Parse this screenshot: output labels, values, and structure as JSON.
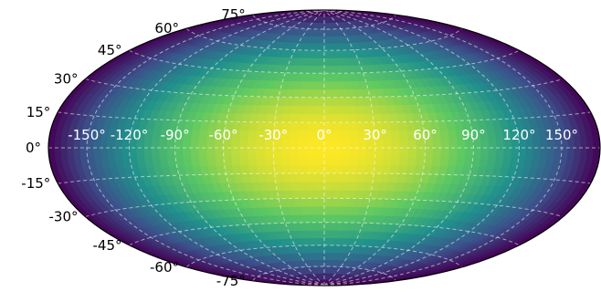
{
  "chart_data": {
    "type": "heatmap",
    "projection": "hammer",
    "title": "",
    "xlabel": "",
    "ylabel": "",
    "field": "cos(latitude) * cos(longitude / 2)",
    "value_range": [
      0,
      1
    ],
    "colormap": "viridis",
    "colormap_stops": [
      "#440154",
      "#3b528b",
      "#21918c",
      "#5ec962",
      "#fde725"
    ],
    "xlim": [
      -180,
      180
    ],
    "ylim": [
      -90,
      90
    ],
    "grid": true,
    "x_ticks": [
      -150,
      -120,
      -90,
      -60,
      -30,
      0,
      30,
      60,
      90,
      120,
      150
    ],
    "x_tick_labels": [
      "-150°",
      "-120°",
      "-90°",
      "-60°",
      "-30°",
      "0°",
      "30°",
      "60°",
      "90°",
      "120°",
      "150°"
    ],
    "y_ticks": [
      -75,
      -60,
      -45,
      -30,
      -15,
      0,
      15,
      30,
      45,
      60,
      75
    ],
    "y_tick_labels": [
      "-75°",
      "-60°",
      "-45°",
      "-30°",
      "-15°",
      "0°",
      "15°",
      "30°",
      "45°",
      "60°",
      "75°"
    ]
  }
}
